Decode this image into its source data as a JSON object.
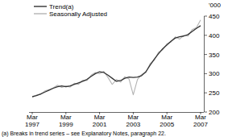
{
  "chart_data": {
    "type": "line",
    "y_label": "'000",
    "annotations": [
      "(a) Breaks in trend series – see Explanatory Notes, paragraph 22."
    ],
    "categories": [
      "Mar 1997",
      null,
      null,
      null,
      null,
      null,
      null,
      null,
      "Mar 1999",
      null,
      null,
      null,
      null,
      null,
      null,
      null,
      "Mar 2001",
      null,
      null,
      null,
      null,
      null,
      null,
      null,
      "Mar 2003",
      null,
      null,
      null,
      null,
      null,
      null,
      null,
      "Mar 2005",
      null,
      null,
      null,
      null,
      null,
      null,
      null,
      "Mar 2007"
    ],
    "series": [
      {
        "name": "Trend(a)",
        "color": "#333333",
        "values": [
          240,
          243,
          247,
          252,
          257,
          262,
          266,
          268,
          266,
          268,
          272,
          276,
          280,
          285,
          293,
          300,
          305,
          303,
          296,
          288,
          280,
          282,
          288,
          291,
          290,
          291,
          295,
          305,
          322,
          338,
          352,
          365,
          375,
          385,
          393,
          396,
          398,
          402,
          410,
          418,
          425
        ]
      },
      {
        "name": "Seasonally Adjusted",
        "color": "#b3b3b3",
        "values": [
          238,
          244,
          246,
          255,
          258,
          263,
          270,
          264,
          268,
          265,
          275,
          272,
          283,
          282,
          296,
          303,
          300,
          306,
          290,
          272,
          285,
          278,
          292,
          286,
          245,
          285,
          298,
          303,
          326,
          335,
          356,
          362,
          378,
          383,
          396,
          390,
          400,
          398,
          415,
          420,
          440
        ]
      }
    ],
    "ylim": [
      200,
      450
    ],
    "yticks": [
      200,
      250,
      300,
      350,
      400,
      450
    ],
    "grid": false,
    "legend": "top-left"
  }
}
